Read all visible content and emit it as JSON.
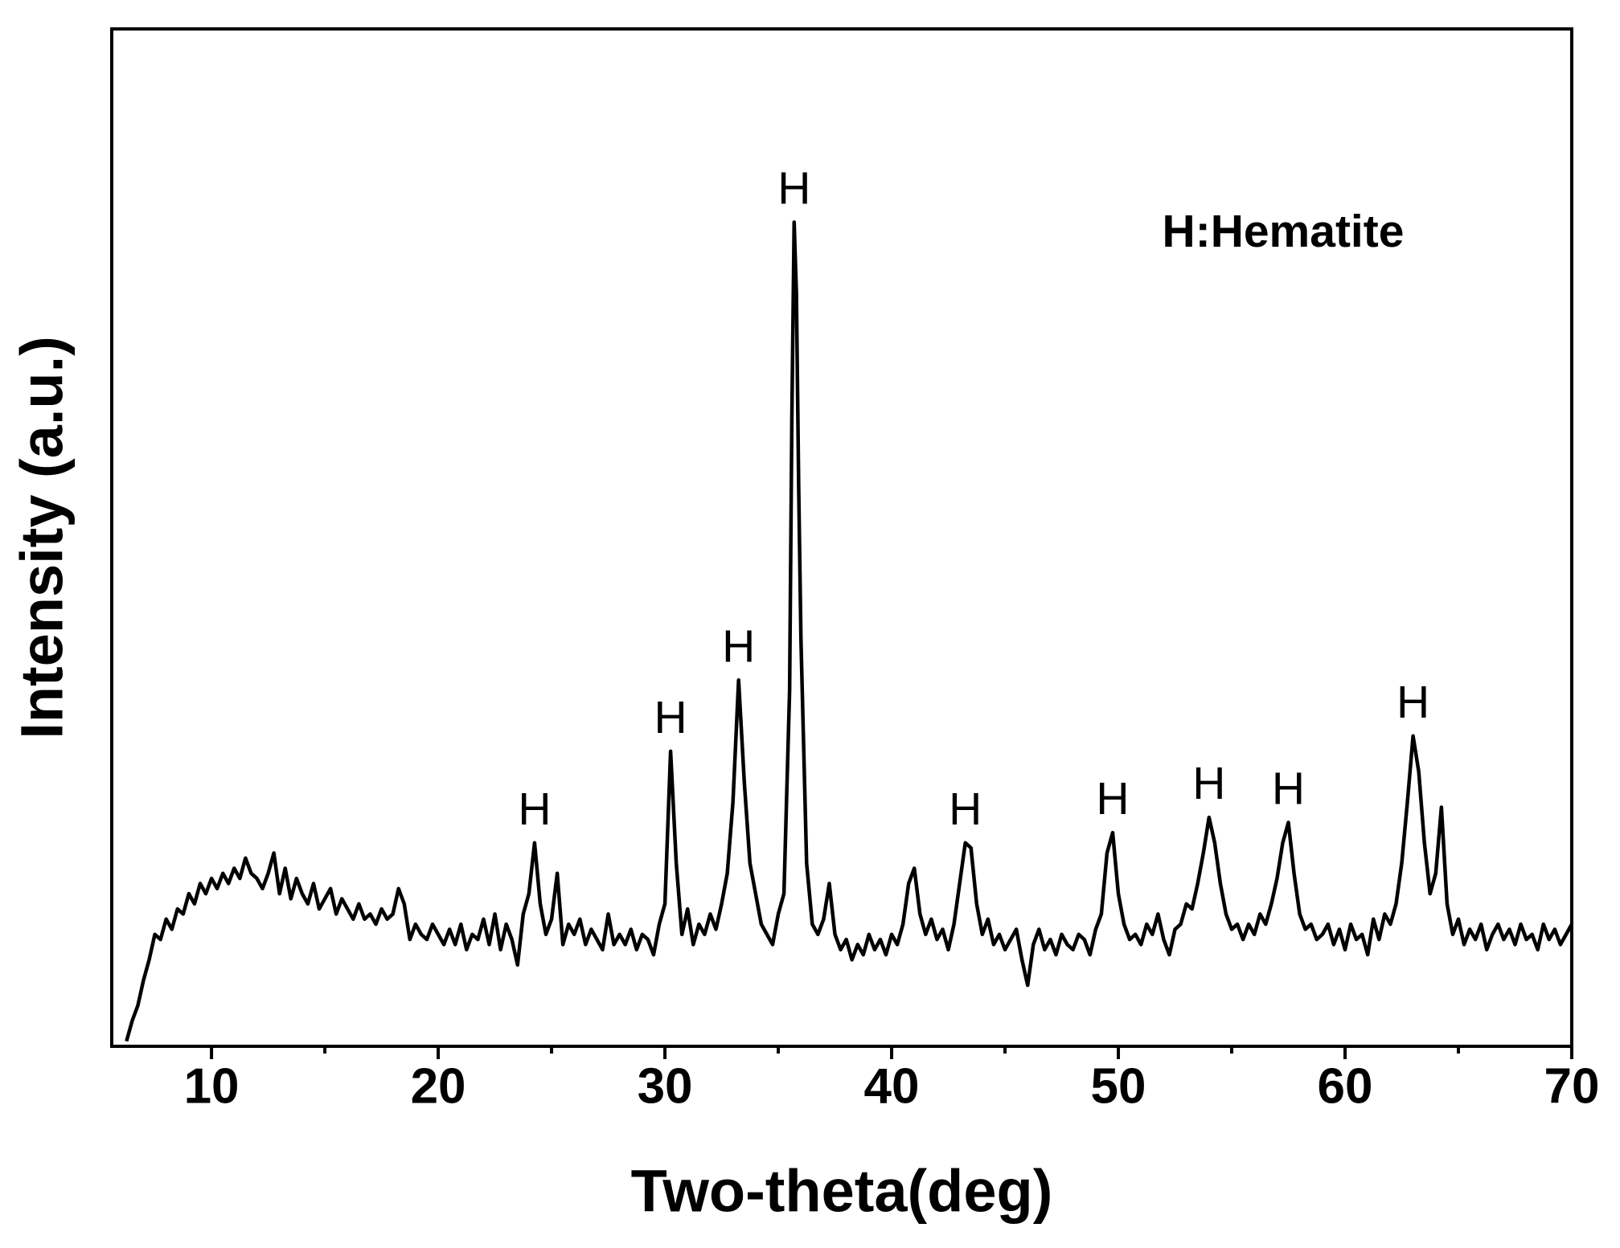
{
  "chart_data": {
    "type": "line",
    "xlabel": "Two-theta(deg)",
    "ylabel": "Intensity (a.u.)",
    "legend_text": "H:Hematite",
    "color": "#000000",
    "xlim": [
      5.6,
      70
    ],
    "xticks": [
      10,
      20,
      30,
      40,
      50,
      60,
      70
    ],
    "xminorticks": [
      15,
      25,
      35,
      45,
      55,
      65
    ],
    "ylim": [
      0,
      100
    ],
    "annotations": [
      {
        "text": "H",
        "x": 24.25
      },
      {
        "text": "H",
        "x": 30.25
      },
      {
        "text": "H",
        "x": 33.25
      },
      {
        "text": "H",
        "x": 35.7
      },
      {
        "text": "H",
        "x": 43.25
      },
      {
        "text": "H",
        "x": 49.75
      },
      {
        "text": "H",
        "x": 54.0
      },
      {
        "text": "H",
        "x": 57.5
      },
      {
        "text": "H",
        "x": 63.0
      }
    ],
    "x": [
      6.25,
      6.5,
      6.75,
      7.0,
      7.25,
      7.5,
      7.75,
      8.0,
      8.25,
      8.5,
      8.75,
      9.0,
      9.25,
      9.5,
      9.75,
      10.0,
      10.25,
      10.5,
      10.75,
      11.0,
      11.25,
      11.5,
      11.75,
      12.0,
      12.25,
      12.5,
      12.75,
      13.0,
      13.25,
      13.5,
      13.75,
      14.0,
      14.25,
      14.5,
      14.75,
      15.0,
      15.25,
      15.5,
      15.75,
      16.0,
      16.25,
      16.5,
      16.75,
      17.0,
      17.25,
      17.5,
      17.75,
      18.0,
      18.25,
      18.5,
      18.75,
      19.0,
      19.25,
      19.5,
      19.75,
      20.0,
      20.25,
      20.5,
      20.75,
      21.0,
      21.25,
      21.5,
      21.75,
      22.0,
      22.25,
      22.5,
      22.75,
      23.0,
      23.25,
      23.5,
      23.75,
      24.0,
      24.25,
      24.5,
      24.75,
      25.0,
      25.25,
      25.5,
      25.75,
      26.0,
      26.25,
      26.5,
      26.75,
      27.0,
      27.25,
      27.5,
      27.75,
      28.0,
      28.25,
      28.5,
      28.75,
      29.0,
      29.25,
      29.5,
      29.75,
      30.0,
      30.25,
      30.5,
      30.75,
      31.0,
      31.25,
      31.5,
      31.75,
      32.0,
      32.25,
      32.5,
      32.75,
      33.0,
      33.25,
      33.5,
      33.75,
      34.0,
      34.25,
      34.5,
      34.75,
      35.0,
      35.25,
      35.5,
      35.6,
      35.7,
      35.8,
      35.9,
      36.0,
      36.25,
      36.5,
      36.75,
      37.0,
      37.25,
      37.5,
      37.75,
      38.0,
      38.25,
      38.5,
      38.75,
      39.0,
      39.25,
      39.5,
      39.75,
      40.0,
      40.25,
      40.5,
      40.75,
      41.0,
      41.25,
      41.5,
      41.75,
      42.0,
      42.25,
      42.5,
      42.75,
      43.0,
      43.25,
      43.5,
      43.75,
      44.0,
      44.25,
      44.5,
      44.75,
      45.0,
      45.25,
      45.5,
      45.75,
      46.0,
      46.25,
      46.5,
      46.75,
      47.0,
      47.25,
      47.5,
      47.75,
      48.0,
      48.25,
      48.5,
      48.75,
      49.0,
      49.25,
      49.5,
      49.75,
      50.0,
      50.25,
      50.5,
      50.75,
      51.0,
      51.25,
      51.5,
      51.75,
      52.0,
      52.25,
      52.5,
      52.75,
      53.0,
      53.25,
      53.5,
      53.75,
      54.0,
      54.25,
      54.5,
      54.75,
      55.0,
      55.25,
      55.5,
      55.75,
      56.0,
      56.25,
      56.5,
      56.75,
      57.0,
      57.25,
      57.5,
      57.75,
      58.0,
      58.25,
      58.5,
      58.75,
      59.0,
      59.25,
      59.5,
      59.75,
      60.0,
      60.25,
      60.5,
      60.75,
      61.0,
      61.25,
      61.5,
      61.75,
      62.0,
      62.25,
      62.5,
      62.75,
      63.0,
      63.25,
      63.5,
      63.75,
      64.0,
      64.25,
      64.5,
      64.75,
      65.0,
      65.25,
      65.5,
      65.75,
      66.0,
      66.25,
      66.5,
      66.75,
      67.0,
      67.25,
      67.5,
      67.75,
      68.0,
      68.25,
      68.5,
      68.75,
      69.0,
      69.25,
      69.5,
      69.75,
      70.0
    ],
    "values": [
      0.5,
      2.5,
      4,
      6.5,
      8.5,
      11,
      10.5,
      12.5,
      11.5,
      13.5,
      13,
      15,
      14,
      16,
      15,
      16.5,
      15.5,
      17,
      16,
      17.5,
      16.5,
      18.5,
      17,
      16.5,
      15.5,
      17,
      19,
      15,
      17.5,
      14.5,
      16.5,
      15,
      14,
      16,
      13.5,
      14.5,
      15.5,
      13,
      14.5,
      13.5,
      12.5,
      14,
      12.5,
      13,
      12,
      13.5,
      12.5,
      13,
      15.5,
      14,
      10.5,
      12,
      11,
      10.5,
      12,
      11,
      10,
      11.5,
      10,
      12,
      9.5,
      11,
      10.5,
      12.5,
      10,
      13,
      9.5,
      12,
      10.5,
      8,
      13,
      15,
      20,
      14,
      11,
      12.5,
      17,
      10,
      12,
      11,
      12.5,
      10,
      11.5,
      10.5,
      9.5,
      13,
      10,
      11,
      10,
      11.5,
      9.5,
      11,
      10.5,
      9,
      12,
      14,
      29,
      18,
      11,
      13.5,
      10,
      12,
      11,
      13,
      11.5,
      14,
      17,
      24,
      36,
      26,
      18,
      15,
      12,
      11,
      10,
      13,
      15,
      35,
      62,
      81,
      74,
      55,
      40,
      18,
      12,
      11,
      12.5,
      16,
      11,
      9.5,
      10.5,
      8.5,
      10,
      9,
      11,
      9.5,
      10.5,
      9,
      11,
      10,
      12,
      16,
      17.5,
      13,
      11,
      12.5,
      10.5,
      11.5,
      9.5,
      12,
      16,
      20,
      19.5,
      14,
      11,
      12.5,
      10,
      11,
      9.5,
      10.5,
      11.5,
      8.5,
      6,
      10,
      11.5,
      9.5,
      10.5,
      9,
      11,
      10,
      9.5,
      11,
      10.5,
      9,
      11.5,
      13,
      19,
      21,
      15,
      12,
      10.5,
      11,
      10,
      12,
      11,
      13,
      10.5,
      9,
      11.5,
      12,
      14,
      13.5,
      16,
      19,
      22.5,
      20,
      16,
      13,
      11.5,
      12,
      10.5,
      12,
      11,
      13,
      12,
      14,
      16.5,
      20,
      22,
      17,
      13,
      11.5,
      12,
      10.5,
      11,
      12,
      10,
      11.5,
      9.5,
      12,
      10.5,
      11,
      9,
      12.5,
      10.5,
      13,
      12,
      14,
      18,
      24,
      30.5,
      27,
      20,
      15,
      17,
      23.5,
      14,
      11,
      12.5,
      10,
      11.5,
      10.5,
      12,
      9.5,
      11,
      12,
      10.5,
      11.5,
      10,
      12,
      10.5,
      11,
      9.5,
      12,
      10.5,
      11.5,
      10,
      11,
      12
    ]
  }
}
